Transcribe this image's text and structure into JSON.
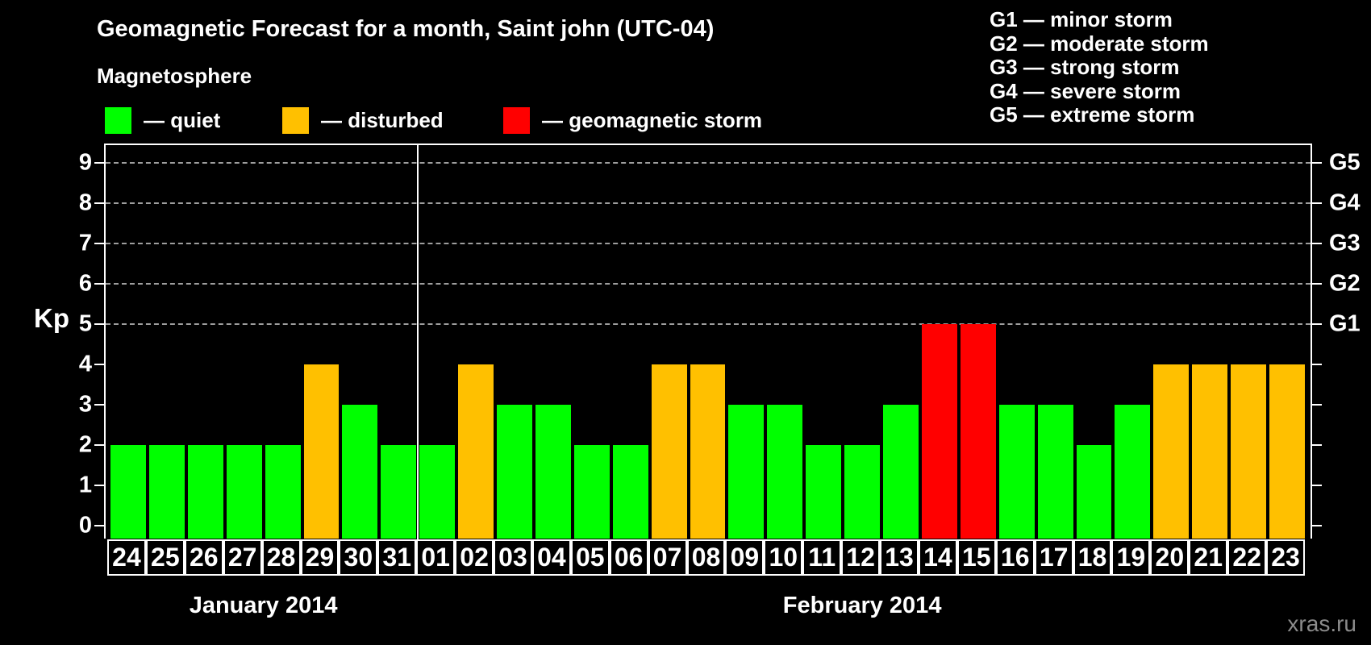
{
  "header": {
    "title": "Geomagnetic Forecast for a month, Saint john (UTC-04)",
    "subtitle": "Magnetosphere"
  },
  "legend": {
    "items": [
      {
        "key": "quiet",
        "label": "— quiet",
        "color": "#00ff00"
      },
      {
        "key": "disturbed",
        "label": "— disturbed",
        "color": "#ffc000"
      },
      {
        "key": "storm",
        "label": "— geomagnetic storm",
        "color": "#ff0000"
      }
    ]
  },
  "g_scale_legend": {
    "items": [
      "G1 — minor storm",
      "G2 — moderate storm",
      "G3 — strong storm",
      "G4 — severe storm",
      "G5 — extreme storm"
    ]
  },
  "watermark": "xras.ru",
  "chart_data": {
    "type": "bar",
    "title": "Geomagnetic Forecast for a month, Saint john (UTC-04)",
    "ylabel": "Kp",
    "ylim": [
      0,
      9
    ],
    "yticks": [
      0,
      1,
      2,
      3,
      4,
      5,
      6,
      7,
      8,
      9
    ],
    "grid_kp_levels": [
      5,
      6,
      7,
      8,
      9
    ],
    "right_axis": [
      {
        "kp": 5,
        "label": "G1"
      },
      {
        "kp": 6,
        "label": "G2"
      },
      {
        "kp": 7,
        "label": "G3"
      },
      {
        "kp": 8,
        "label": "G4"
      },
      {
        "kp": 9,
        "label": "G5"
      }
    ],
    "status_colors": {
      "quiet": "#00ff00",
      "disturbed": "#ffc000",
      "storm": "#ff0000"
    },
    "months": [
      {
        "label": "January 2014",
        "days": [
          {
            "day": "24",
            "kp": 2,
            "status": "quiet"
          },
          {
            "day": "25",
            "kp": 2,
            "status": "quiet"
          },
          {
            "day": "26",
            "kp": 2,
            "status": "quiet"
          },
          {
            "day": "27",
            "kp": 2,
            "status": "quiet"
          },
          {
            "day": "28",
            "kp": 2,
            "status": "quiet"
          },
          {
            "day": "29",
            "kp": 4,
            "status": "disturbed"
          },
          {
            "day": "30",
            "kp": 3,
            "status": "quiet"
          },
          {
            "day": "31",
            "kp": 2,
            "status": "quiet"
          }
        ]
      },
      {
        "label": "February 2014",
        "days": [
          {
            "day": "01",
            "kp": 2,
            "status": "quiet"
          },
          {
            "day": "02",
            "kp": 4,
            "status": "disturbed"
          },
          {
            "day": "03",
            "kp": 3,
            "status": "quiet"
          },
          {
            "day": "04",
            "kp": 3,
            "status": "quiet"
          },
          {
            "day": "05",
            "kp": 2,
            "status": "quiet"
          },
          {
            "day": "06",
            "kp": 2,
            "status": "quiet"
          },
          {
            "day": "07",
            "kp": 4,
            "status": "disturbed"
          },
          {
            "day": "08",
            "kp": 4,
            "status": "disturbed"
          },
          {
            "day": "09",
            "kp": 3,
            "status": "quiet"
          },
          {
            "day": "10",
            "kp": 3,
            "status": "quiet"
          },
          {
            "day": "11",
            "kp": 2,
            "status": "quiet"
          },
          {
            "day": "12",
            "kp": 2,
            "status": "quiet"
          },
          {
            "day": "13",
            "kp": 3,
            "status": "quiet"
          },
          {
            "day": "14",
            "kp": 5,
            "status": "storm"
          },
          {
            "day": "15",
            "kp": 5,
            "status": "storm"
          },
          {
            "day": "16",
            "kp": 3,
            "status": "quiet"
          },
          {
            "day": "17",
            "kp": 3,
            "status": "quiet"
          },
          {
            "day": "18",
            "kp": 2,
            "status": "quiet"
          },
          {
            "day": "19",
            "kp": 3,
            "status": "quiet"
          },
          {
            "day": "20",
            "kp": 4,
            "status": "disturbed"
          },
          {
            "day": "21",
            "kp": 4,
            "status": "disturbed"
          },
          {
            "day": "22",
            "kp": 4,
            "status": "disturbed"
          },
          {
            "day": "23",
            "kp": 4,
            "status": "disturbed"
          }
        ]
      }
    ]
  }
}
